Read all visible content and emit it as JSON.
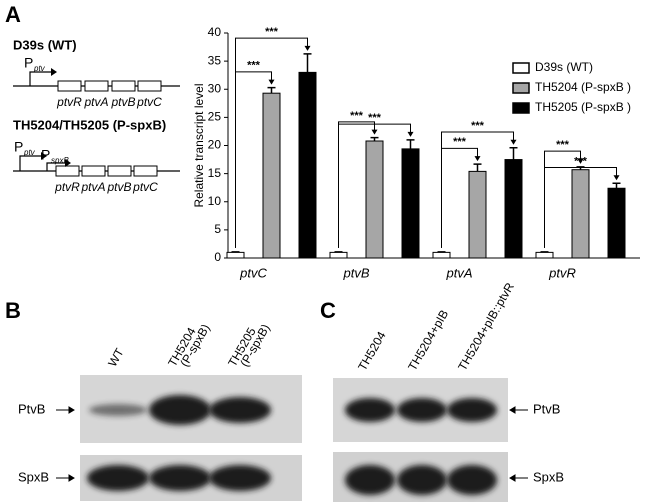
{
  "panels": [
    "A",
    "B",
    "C"
  ],
  "diagrams": [
    {
      "title": "D39s (WT)",
      "promoters": [
        {
          "label": "P",
          "sub": "ptv"
        }
      ],
      "genes": [
        "ptvR",
        "ptvA",
        "ptvB",
        "ptvC"
      ]
    },
    {
      "title": "TH5204/TH5205 (P-spxB)",
      "promoters": [
        {
          "label": "P",
          "sub": "ptv"
        },
        {
          "label": "P",
          "sub": "spxB"
        }
      ],
      "genes": [
        "ptvR",
        "ptvA",
        "ptvB",
        "ptvC"
      ]
    }
  ],
  "chart_data": {
    "type": "bar",
    "y_label": "Relative transcript level",
    "categories": [
      "ptvC",
      "ptvB",
      "ptvA",
      "ptvR"
    ],
    "series": [
      {
        "name": "D39s (WT)",
        "color": "#ffffff",
        "values": [
          1,
          1,
          1,
          1
        ],
        "errors": [
          0.1,
          0.1,
          0.1,
          0.1
        ]
      },
      {
        "name": "TH5204 (P-spxB )",
        "color": "#a6a6a6",
        "values": [
          29.3,
          20.8,
          15.4,
          15.7
        ],
        "errors": [
          1,
          0.6,
          1.3,
          0.5
        ]
      },
      {
        "name": "TH5205 (P-spxB )",
        "color": "#000000",
        "values": [
          33,
          19.4,
          17.5,
          12.4
        ],
        "errors": [
          3.3,
          1.6,
          2.1,
          0.9
        ]
      }
    ],
    "annotations": [
      "***",
      "***",
      "***",
      "***",
      "***",
      "***",
      "***",
      "***"
    ],
    "ylim": [
      0,
      40
    ],
    "yticks": [
      0,
      5,
      10,
      15,
      20,
      25,
      30,
      35,
      40
    ],
    "legend": "upper right"
  },
  "blot_b": {
    "lanes": [
      [
        "WT"
      ],
      [
        "TH5204",
        "(P-spxB)"
      ],
      [
        "TH5205",
        "(P-spxB)"
      ]
    ],
    "rows": [
      "PtvB",
      "SpxB"
    ]
  },
  "blot_c": {
    "lanes": [
      [
        "TH5204"
      ],
      [
        "TH5204+pIB"
      ],
      [
        "TH5204+pIB::ptvR"
      ]
    ],
    "rows": [
      "PtvB",
      "SpxB"
    ]
  }
}
